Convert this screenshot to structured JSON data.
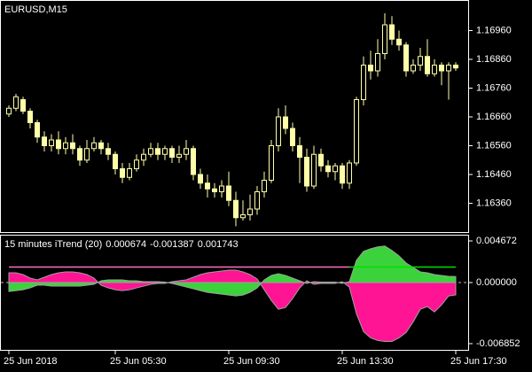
{
  "chart_data": [
    {
      "type": "candlestick",
      "title": "EURUSD,M15",
      "categories": [
        "25 Jun 2018",
        null,
        null,
        null,
        null,
        null,
        null,
        null,
        null,
        null,
        null,
        null,
        null,
        null,
        null,
        "25 Jun 05:30",
        null,
        null,
        null,
        null,
        null,
        null,
        null,
        null,
        null,
        null,
        null,
        null,
        null,
        null,
        null,
        "25 Jun 09:30",
        null,
        null,
        null,
        null,
        null,
        null,
        null,
        null,
        null,
        null,
        null,
        null,
        null,
        null,
        null,
        "25 Jun 13:30",
        null,
        null,
        null,
        null,
        null,
        null,
        null,
        null,
        null,
        null,
        null,
        null,
        null,
        null,
        null,
        "25 Jun 17:30"
      ],
      "open": [
        1.1667,
        1.1669,
        1.1672,
        1.1668,
        1.1664,
        1.1659,
        1.1656,
        1.1658,
        1.1655,
        1.1657,
        1.1655,
        1.1651,
        1.1655,
        1.1657,
        1.1655,
        1.1653,
        1.1648,
        1.1645,
        1.1648,
        1.1651,
        1.1653,
        1.1655,
        1.1653,
        1.1655,
        1.1652,
        1.1653,
        1.1655,
        1.1646,
        1.1643,
        1.1641,
        1.164,
        1.1642,
        1.1637,
        1.1631,
        1.1632,
        1.1634,
        1.164,
        1.1644,
        1.1656,
        1.1666,
        1.1662,
        1.1656,
        1.1652,
        1.1642,
        1.1653,
        1.1649,
        1.1647,
        1.1649,
        1.1643,
        1.165,
        1.1672,
        1.1684,
        1.1682,
        1.1688,
        1.1698,
        1.1693,
        1.1691,
        1.1682,
        1.1684,
        1.1687,
        1.1681,
        1.1684,
        1.1682,
        1.1684
      ],
      "high": [
        1.167,
        1.1674,
        1.1673,
        1.1669,
        1.1665,
        1.1661,
        1.166,
        1.1661,
        1.1659,
        1.166,
        1.1656,
        1.1658,
        1.1659,
        1.1658,
        1.1657,
        1.1654,
        1.165,
        1.165,
        1.1653,
        1.1655,
        1.1657,
        1.1657,
        1.1656,
        1.1656,
        1.1656,
        1.1658,
        1.1656,
        1.1648,
        1.1646,
        1.1643,
        1.1644,
        1.1647,
        1.164,
        1.1637,
        1.1639,
        1.1642,
        1.1647,
        1.1658,
        1.1669,
        1.167,
        1.1664,
        1.1659,
        1.1655,
        1.1656,
        1.1655,
        1.1651,
        1.165,
        1.165,
        1.1651,
        1.1673,
        1.1687,
        1.1689,
        1.1693,
        1.1702,
        1.1701,
        1.1696,
        1.1692,
        1.1686,
        1.169,
        1.1693,
        1.1686,
        1.1685,
        1.1685,
        1.1685
      ],
      "low": [
        1.1666,
        1.1668,
        1.1667,
        1.1662,
        1.1657,
        1.1654,
        1.1654,
        1.1653,
        1.1653,
        1.1653,
        1.1649,
        1.165,
        1.1654,
        1.1653,
        1.1651,
        1.1646,
        1.1643,
        1.1644,
        1.1647,
        1.1649,
        1.1652,
        1.1651,
        1.1651,
        1.165,
        1.165,
        1.1651,
        1.1644,
        1.1641,
        1.1638,
        1.1638,
        1.1638,
        1.1635,
        1.1628,
        1.163,
        1.163,
        1.1632,
        1.1638,
        1.1643,
        1.1654,
        1.166,
        1.1654,
        1.1643,
        1.164,
        1.1641,
        1.1647,
        1.1645,
        1.1644,
        1.1641,
        1.1641,
        1.1649,
        1.167,
        1.1679,
        1.168,
        1.1686,
        1.1691,
        1.1689,
        1.168,
        1.1681,
        1.1682,
        1.168,
        1.168,
        1.1677,
        1.1672,
        1.1682
      ],
      "close": [
        1.1669,
        1.1673,
        1.1668,
        1.1664,
        1.1659,
        1.1656,
        1.1658,
        1.1655,
        1.1657,
        1.1655,
        1.1651,
        1.1655,
        1.1657,
        1.1655,
        1.1653,
        1.1648,
        1.1645,
        1.1648,
        1.1651,
        1.1653,
        1.1655,
        1.1653,
        1.1655,
        1.1652,
        1.1653,
        1.1655,
        1.1646,
        1.1643,
        1.1641,
        1.164,
        1.1642,
        1.1637,
        1.1631,
        1.1632,
        1.1634,
        1.164,
        1.1644,
        1.1656,
        1.1666,
        1.1662,
        1.1656,
        1.1652,
        1.1642,
        1.1653,
        1.1649,
        1.1647,
        1.1649,
        1.1643,
        1.165,
        1.1672,
        1.1684,
        1.1682,
        1.1688,
        1.1698,
        1.1693,
        1.1691,
        1.1682,
        1.1684,
        1.1687,
        1.1681,
        1.1684,
        1.1682,
        1.1684,
        1.1683
      ],
      "color": "#ffffa8",
      "ylim": [
        1.1626,
        1.1706
      ],
      "yticks": [
        {
          "value": 1.1696,
          "label": "1.16960"
        },
        {
          "value": 1.1686,
          "label": "1.16860"
        },
        {
          "value": 1.1676,
          "label": "1.16760"
        },
        {
          "value": 1.1666,
          "label": "1.16660"
        },
        {
          "value": 1.1656,
          "label": "1.16560"
        },
        {
          "value": 1.1646,
          "label": "1.16460"
        },
        {
          "value": 1.1636,
          "label": "1.16360"
        }
      ]
    },
    {
      "type": "area",
      "title": "15 minutes iTrend (20)",
      "series": [
        {
          "color": "#3cd23c",
          "values": [
            -0.001,
            -0.0009,
            -0.0008,
            -0.0006,
            -0.0003,
            -0.0003,
            -0.0004,
            -0.0004,
            -0.0004,
            -0.0004,
            -0.0004,
            -0.0003,
            -0.0002,
            0.0002,
            0.0003,
            0.0003,
            0.0003,
            0.0002,
            0.0002,
            0.0001,
            0.0001,
            0.0001,
            5e-05,
            -0.0001,
            -0.0003,
            -0.0005,
            -0.0007,
            -0.0009,
            -0.0011,
            -0.0012,
            -0.0013,
            -0.0014,
            -0.0015,
            -0.0014,
            -0.0011,
            -0.0006,
            0.0003,
            0.0008,
            0.001,
            0.0008,
            0.0005,
            0.0002,
            -0.0001,
            0.0001,
            5e-05,
            5e-05,
            5e-05,
            -0.0001,
            0.0001,
            0.0025,
            0.0035,
            0.0038,
            0.004,
            0.0041,
            0.0036,
            0.003,
            0.0022,
            0.0017,
            0.0012,
            0.0011,
            0.0009,
            0.0008,
            0.0007,
            0.000674
          ]
        },
        {
          "color": "#ff1493",
          "values": [
            0.0011,
            0.0011,
            0.0009,
            0.0005,
            0.0003,
            0.0006,
            0.0009,
            0.0011,
            0.0012,
            0.0012,
            0.0011,
            0.0009,
            0.0005,
            -0.0003,
            -0.0006,
            -0.0008,
            -0.0009,
            -0.0008,
            -0.0006,
            -0.0004,
            -0.0002,
            -0.0001,
            -0.0001,
            0.0001,
            0.0002,
            0.0003,
            0.0006,
            0.0009,
            0.0011,
            0.0012,
            0.0013,
            0.0014,
            0.0014,
            0.0012,
            0.0009,
            0.0004,
            -0.0008,
            -0.002,
            -0.003,
            -0.0028,
            -0.0018,
            -0.0006,
            0.0002,
            -0.0002,
            -0.0001,
            -0.0001,
            -0.0001,
            0.0001,
            -0.0005,
            -0.0035,
            -0.0055,
            -0.0062,
            -0.0065,
            -0.0066,
            -0.0066,
            -0.0062,
            -0.0056,
            -0.0044,
            -0.003,
            -0.0027,
            -0.0033,
            -0.0025,
            -0.0015,
            -0.001387
          ]
        },
        {
          "color": "#ff6ec7",
          "values": [
            0.001743,
            0.001743,
            0.001743,
            0.001743,
            0.001743,
            0.001743,
            0.001743,
            0.001743,
            0.001743,
            0.001743,
            0.001743,
            0.001743,
            0.001743,
            0.001743,
            0.001743,
            0.001743,
            0.001743,
            0.001743,
            0.001743,
            0.001743,
            0.001743,
            0.001743,
            0.001743,
            0.001743,
            0.001743,
            0.001743,
            0.001743,
            0.001743,
            0.001743,
            0.001743,
            0.001743,
            0.001743,
            0.001743,
            0.001743,
            0.001743,
            0.001743,
            0.001743,
            0.001743,
            0.001743,
            0.001743,
            0.001743,
            0.001743,
            0.001743,
            0.001743,
            0.001743,
            0.001743,
            0.001743,
            0.001743,
            0.001743,
            null,
            null,
            null,
            null,
            null,
            null,
            null,
            null,
            null,
            null,
            null,
            null,
            null,
            null,
            null
          ]
        },
        {
          "color": "#00e000",
          "values": [
            null,
            null,
            null,
            null,
            null,
            null,
            null,
            null,
            null,
            null,
            null,
            null,
            null,
            null,
            null,
            null,
            null,
            null,
            null,
            null,
            null,
            null,
            null,
            null,
            null,
            null,
            null,
            null,
            null,
            null,
            null,
            null,
            null,
            null,
            null,
            null,
            null,
            null,
            null,
            null,
            null,
            null,
            null,
            null,
            null,
            null,
            null,
            null,
            0.001743,
            0.001743,
            0.001743,
            0.001743,
            0.001743,
            0.001743,
            0.001743,
            0.001743,
            0.001743,
            0.001743,
            0.001743,
            0.001743,
            0.001743,
            0.001743,
            0.001743,
            0.001743
          ]
        }
      ],
      "ylim": [
        -0.00755,
        0.00527
      ],
      "yticks": [
        0.004672,
        {
          "value": 0,
          "label": "0.000000"
        },
        -0.006852
      ]
    }
  ]
}
